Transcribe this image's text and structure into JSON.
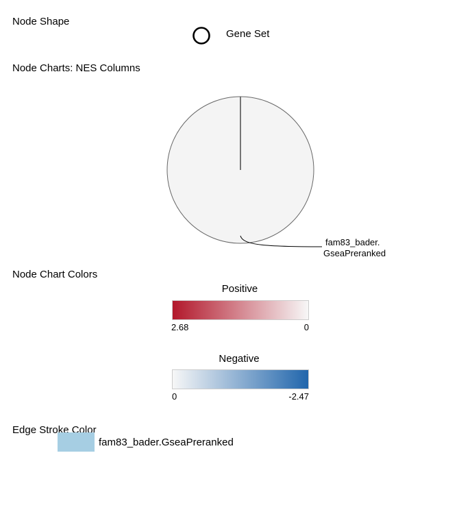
{
  "sections": {
    "node_shape": {
      "title": "Node Shape",
      "shape_label": "Gene Set",
      "shape_icon": "circle-outline-icon"
    },
    "node_charts": {
      "title": "Node Charts: NES Columns",
      "slice_label_line1": "fam83_bader.",
      "slice_label_line2": "GseaPreranked"
    },
    "node_chart_colors": {
      "title": "Node Chart Colors",
      "positive": {
        "title": "Positive",
        "min_label": "2.68",
        "max_label": "0",
        "color_start": "#b2182b",
        "color_end": "#f7f7f7"
      },
      "negative": {
        "title": "Negative",
        "min_label": "0",
        "max_label": "-2.47",
        "color_start": "#f7f7f7",
        "color_end": "#2166ac"
      }
    },
    "edge_stroke_color": {
      "title": "Edge Stroke Color",
      "item_label": "fam83_bader.GseaPreranked",
      "swatch_color": "#a6cee3"
    }
  }
}
